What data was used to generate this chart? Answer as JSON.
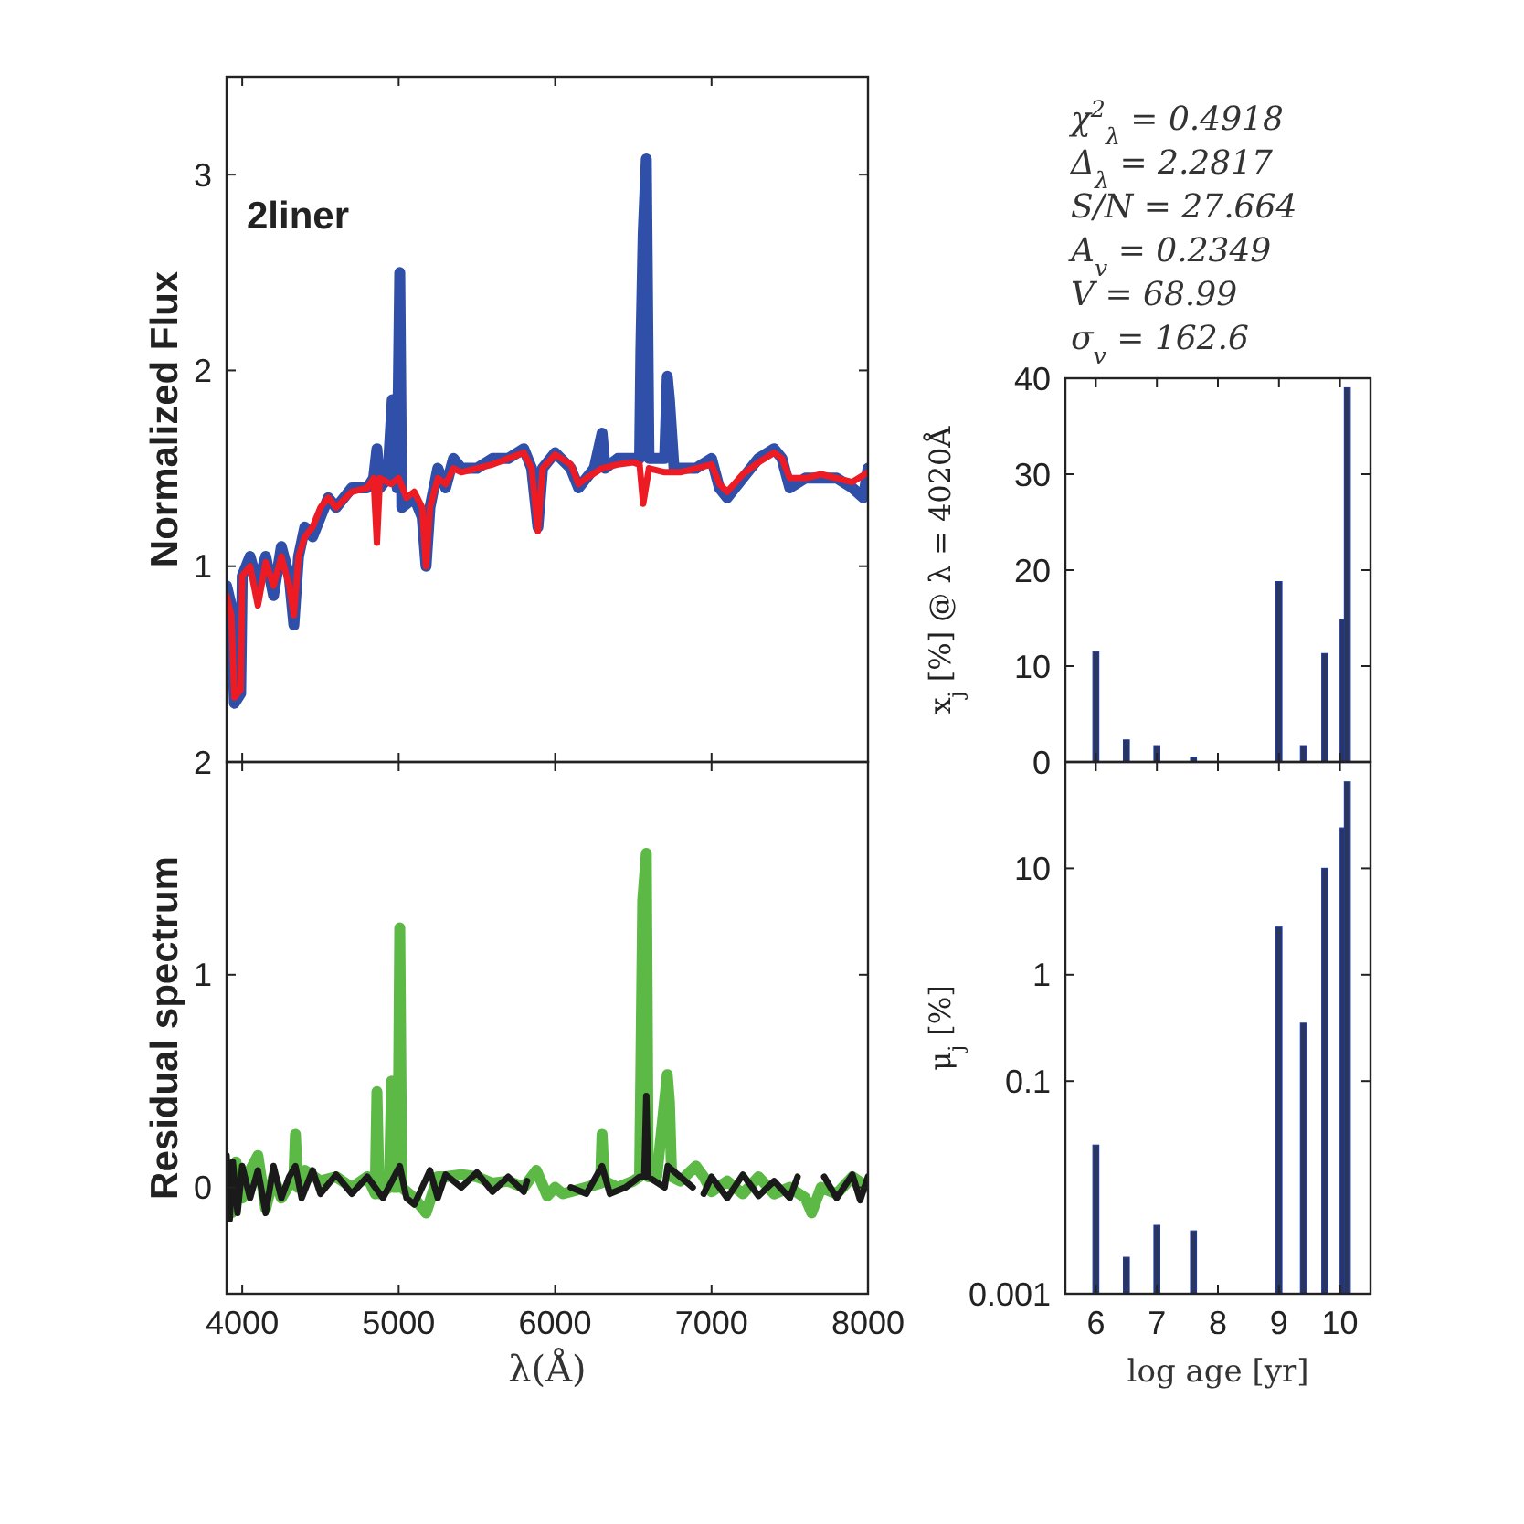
{
  "chart_data": [
    {
      "type": "line",
      "ylabel": "Normalized Flux",
      "annotations": [
        "2liner"
      ],
      "xlim": [
        3900,
        8000
      ],
      "ylim": [
        0,
        3.5
      ],
      "xticks": [
        4000,
        5000,
        6000,
        7000,
        8000
      ],
      "yticks": [
        1,
        2,
        3
      ],
      "tick_labels": "y",
      "series": [
        {
          "color": "#2f4fa8",
          "x": [
            3900,
            3930,
            3950,
            3990,
            4000,
            4050,
            4100,
            4150,
            4200,
            4250,
            4300,
            4330,
            4360,
            4400,
            4450,
            4500,
            4550,
            4600,
            4700,
            4800,
            4840,
            4861,
            4880,
            4930,
            4959,
            4990,
            5007,
            5020,
            5100,
            5150,
            5175,
            5200,
            5250,
            5300,
            5350,
            5400,
            5500,
            5600,
            5700,
            5800,
            5850,
            5890,
            5920,
            6000,
            6100,
            6150,
            6200,
            6250,
            6300,
            6320,
            6400,
            6500,
            6540,
            6548,
            6563,
            6583,
            6600,
            6700,
            6717,
            6731,
            6760,
            6800,
            6900,
            7000,
            7050,
            7100,
            7200,
            7300,
            7400,
            7450,
            7500,
            7600,
            7700,
            7800,
            7900,
            7970,
            8000
          ],
          "values": [
            0.9,
            0.8,
            0.3,
            0.35,
            0.95,
            1.05,
            0.9,
            1.05,
            0.85,
            1.1,
            0.95,
            0.7,
            1.05,
            1.2,
            1.15,
            1.25,
            1.35,
            1.3,
            1.4,
            1.4,
            1.45,
            1.6,
            1.4,
            1.45,
            1.85,
            1.4,
            2.5,
            1.3,
            1.35,
            1.25,
            1.0,
            1.3,
            1.5,
            1.4,
            1.55,
            1.5,
            1.5,
            1.55,
            1.55,
            1.6,
            1.5,
            1.2,
            1.5,
            1.58,
            1.5,
            1.4,
            1.45,
            1.5,
            1.68,
            1.5,
            1.55,
            1.55,
            1.55,
            2.1,
            2.7,
            3.08,
            1.55,
            1.55,
            1.97,
            1.85,
            1.5,
            1.5,
            1.5,
            1.55,
            1.4,
            1.35,
            1.45,
            1.55,
            1.6,
            1.55,
            1.4,
            1.45,
            1.45,
            1.45,
            1.4,
            1.35,
            1.5
          ]
        },
        {
          "color": "#ed1c24",
          "x": [
            3900,
            3930,
            3950,
            3990,
            4000,
            4050,
            4100,
            4150,
            4200,
            4250,
            4300,
            4330,
            4360,
            4400,
            4450,
            4500,
            4550,
            4600,
            4700,
            4800,
            4840,
            4861,
            4880,
            4950,
            5000,
            5050,
            5100,
            5150,
            5175,
            5200,
            5250,
            5300,
            5350,
            5400,
            5500,
            5600,
            5700,
            5800,
            5850,
            5890,
            5920,
            6000,
            6100,
            6150,
            6200,
            6300,
            6400,
            6500,
            6540,
            6563,
            6600,
            6700,
            6800,
            6900,
            7000,
            7050,
            7100,
            7200,
            7300,
            7400,
            7450,
            7500,
            7600,
            7700,
            7800,
            7900,
            8000
          ],
          "values": [
            0.85,
            0.75,
            0.33,
            0.37,
            0.95,
            1.0,
            0.8,
            1.02,
            0.9,
            1.05,
            0.9,
            0.75,
            1.05,
            1.15,
            1.2,
            1.3,
            1.35,
            1.3,
            1.38,
            1.4,
            1.45,
            1.12,
            1.45,
            1.42,
            1.45,
            1.35,
            1.38,
            1.3,
            1.0,
            1.3,
            1.45,
            1.42,
            1.5,
            1.48,
            1.5,
            1.52,
            1.55,
            1.58,
            1.5,
            1.18,
            1.5,
            1.57,
            1.52,
            1.42,
            1.45,
            1.5,
            1.52,
            1.53,
            1.52,
            1.32,
            1.5,
            1.48,
            1.48,
            1.5,
            1.52,
            1.42,
            1.38,
            1.47,
            1.53,
            1.58,
            1.55,
            1.45,
            1.45,
            1.47,
            1.45,
            1.43,
            1.48
          ]
        }
      ]
    },
    {
      "type": "line",
      "ylabel": "Residual spectrum",
      "xlabel": "λ(Å)",
      "xlim": [
        3900,
        8000
      ],
      "ylim": [
        -0.5,
        2
      ],
      "xticks": [
        4000,
        5000,
        6000,
        7000,
        8000
      ],
      "yticks": [
        0,
        1,
        2
      ],
      "series": [
        {
          "color": "#5cb946",
          "x": [
            3900,
            3930,
            3960,
            4000,
            4050,
            4100,
            4150,
            4200,
            4250,
            4330,
            4340,
            4355,
            4400,
            4500,
            4600,
            4700,
            4800,
            4850,
            4861,
            4875,
            4940,
            4955,
            4970,
            4995,
            5007,
            5020,
            5100,
            5175,
            5250,
            5300,
            5400,
            5500,
            5600,
            5700,
            5800,
            5880,
            5950,
            6000,
            6050,
            6100,
            6200,
            6290,
            6300,
            6315,
            6400,
            6500,
            6540,
            6548,
            6560,
            6583,
            6595,
            6650,
            6717,
            6731,
            6745,
            6800,
            6900,
            6950,
            7000,
            7100,
            7200,
            7300,
            7400,
            7500,
            7600,
            7640,
            7700,
            7800,
            7900,
            8000
          ],
          "values": [
            0.1,
            -0.12,
            0.12,
            -0.05,
            0.08,
            0.15,
            -0.1,
            0.05,
            -0.05,
            0.05,
            0.25,
            0.0,
            0.08,
            0.03,
            0.05,
            0.0,
            0.05,
            -0.03,
            0.45,
            -0.03,
            0.0,
            0.5,
            0.0,
            0.0,
            1.22,
            0.0,
            -0.05,
            -0.12,
            0.05,
            0.05,
            0.06,
            0.05,
            0.02,
            0.03,
            0.0,
            0.08,
            -0.04,
            0.0,
            -0.03,
            -0.02,
            0.0,
            0.02,
            0.25,
            0.03,
            0.0,
            0.03,
            0.05,
            0.55,
            1.35,
            1.57,
            0.05,
            0.05,
            0.53,
            0.4,
            0.05,
            0.03,
            0.1,
            0.05,
            -0.02,
            0.03,
            -0.03,
            0.05,
            -0.03,
            0.0,
            -0.05,
            -0.12,
            0.0,
            -0.03,
            0.05,
            0.0
          ]
        },
        {
          "color": "#1a1a1a",
          "x": [
            3900,
            3920,
            3940,
            3970,
            4000,
            4050,
            4100,
            4150,
            4200,
            4250,
            4300,
            4340,
            4380,
            4450,
            4500,
            4600,
            4700,
            4800,
            4900,
            5007,
            5050,
            5100,
            5150,
            5200,
            5250,
            5300,
            5400,
            5500,
            5600,
            5700,
            5800,
            5820,
            5900,
            6100,
            6200,
            6300,
            6350,
            6450,
            6540,
            6570,
            6583,
            6595,
            6700,
            6720,
            6800,
            6880,
            6910,
            6950,
            7000,
            7100,
            7200,
            7300,
            7400,
            7500,
            7550,
            7580,
            7720,
            7800,
            7900,
            7950,
            8000
          ],
          "values": [
            0.15,
            -0.15,
            0.12,
            -0.12,
            0.1,
            -0.05,
            0.08,
            -0.12,
            0.1,
            -0.05,
            0.05,
            0.1,
            -0.05,
            0.08,
            -0.03,
            0.06,
            -0.03,
            0.05,
            -0.05,
            0.1,
            -0.05,
            -0.08,
            0.0,
            0.08,
            -0.05,
            0.06,
            0.0,
            0.07,
            -0.02,
            0.05,
            -0.02,
            0.03,
            null,
            0.0,
            -0.03,
            0.1,
            -0.03,
            0.0,
            0.05,
            0.05,
            0.43,
            0.05,
            0.0,
            0.1,
            0.05,
            0.0,
            null,
            -0.03,
            0.05,
            -0.05,
            0.06,
            -0.04,
            0.03,
            -0.05,
            0.05,
            null,
            0.05,
            -0.05,
            0.06,
            -0.06,
            0.05
          ]
        }
      ]
    },
    {
      "type": "bar",
      "ylabel": "x$_{j}$ [%] @ λ = 4020Å",
      "annotations": [
        "χ$^{2}$$_{λ}$ = 0.4918",
        "Δ$_{λ}$ = 2.2817",
        "S/N = 27.664",
        "A$_{v}$ = 0.2349",
        "V = 68.99",
        "σ$_{v}$ = 162.6"
      ],
      "xlim": [
        5.5,
        10.5
      ],
      "ylim": [
        0,
        40
      ],
      "xticks": [
        6,
        7,
        8,
        9,
        10
      ],
      "yticks": [
        0,
        10,
        20,
        30,
        40
      ],
      "tick_labels": "y",
      "color": "#2a3560",
      "x": [
        6.0,
        6.5,
        7.0,
        7.6,
        9.0,
        9.4,
        9.75,
        10.05,
        10.12
      ],
      "values": [
        11.5,
        2.3,
        1.7,
        0.5,
        18.8,
        1.7,
        11.3,
        14.8,
        39
      ]
    },
    {
      "type": "bar",
      "log": true,
      "ylabel": "μ$_{j}$ [%]",
      "xlabel": "log age [yr]",
      "xlim": [
        5.5,
        10.5
      ],
      "ylim": [
        0.001,
        100
      ],
      "xticks": [
        6,
        7,
        8,
        9,
        10
      ],
      "yticks": [
        0.001,
        0.1,
        1,
        10
      ],
      "color": "#2a3560",
      "x": [
        6.0,
        6.5,
        7.0,
        7.6,
        9.0,
        9.4,
        9.75,
        10.05,
        10.12
      ],
      "values": [
        0.025,
        0.0022,
        0.0044,
        0.0039,
        2.8,
        0.35,
        10,
        24,
        65
      ]
    }
  ]
}
